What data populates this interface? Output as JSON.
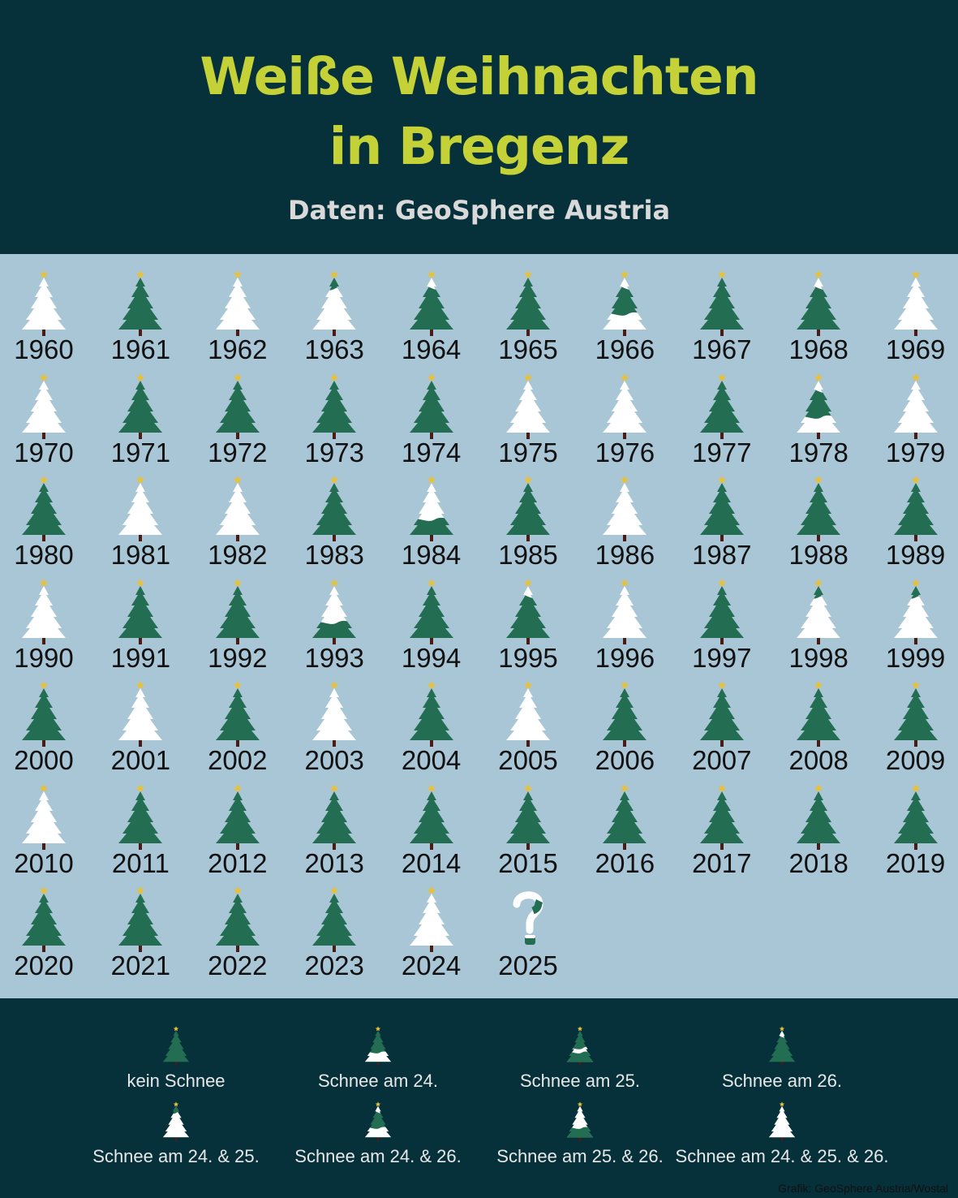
{
  "title_line1": "Weiße Weihnachten",
  "title_line2": "in Bregenz",
  "subtitle": "Daten: GeoSphere Austria",
  "credit": "Grafik: GeoSphere Austria/Wostal",
  "colors": {
    "header_bg": "#06303a",
    "title": "#c4d137",
    "background": "#a9c6d6",
    "tree_green": "#236e52",
    "snow": "#ffffff",
    "trunk": "#4a1c14",
    "star": "#e8c13a"
  },
  "chart_data": {
    "type": "table",
    "title": "Weiße Weihnachten in Bregenz",
    "subtitle": "Daten: GeoSphere Austria",
    "codes": {
      "none": "kein Schnee",
      "24": "Schnee am 24.",
      "25": "Schnee am 25.",
      "26": "Schnee am 26.",
      "24_25": "Schnee am 24. & 25.",
      "24_26": "Schnee am 24. & 26.",
      "25_26": "Schnee am 25. & 26.",
      "24_25_26": "Schnee am 24. & 25. & 26."
    },
    "years": [
      {
        "year": "1960",
        "snow": "24_25_26"
      },
      {
        "year": "1961",
        "snow": "none"
      },
      {
        "year": "1962",
        "snow": "24_25_26"
      },
      {
        "year": "1963",
        "snow": "24_25"
      },
      {
        "year": "1964",
        "snow": "26"
      },
      {
        "year": "1965",
        "snow": "none"
      },
      {
        "year": "1966",
        "snow": "24_26"
      },
      {
        "year": "1967",
        "snow": "none"
      },
      {
        "year": "1968",
        "snow": "26"
      },
      {
        "year": "1969",
        "snow": "24_25_26"
      },
      {
        "year": "1970",
        "snow": "24_25_26"
      },
      {
        "year": "1971",
        "snow": "none"
      },
      {
        "year": "1972",
        "snow": "none"
      },
      {
        "year": "1973",
        "snow": "none"
      },
      {
        "year": "1974",
        "snow": "none"
      },
      {
        "year": "1975",
        "snow": "24_25_26"
      },
      {
        "year": "1976",
        "snow": "24_25_26"
      },
      {
        "year": "1977",
        "snow": "none"
      },
      {
        "year": "1978",
        "snow": "24_26"
      },
      {
        "year": "1979",
        "snow": "24_25_26"
      },
      {
        "year": "1980",
        "snow": "none"
      },
      {
        "year": "1981",
        "snow": "24_25_26"
      },
      {
        "year": "1982",
        "snow": "24_25_26"
      },
      {
        "year": "1983",
        "snow": "none"
      },
      {
        "year": "1984",
        "snow": "25_26"
      },
      {
        "year": "1985",
        "snow": "none"
      },
      {
        "year": "1986",
        "snow": "24_25_26"
      },
      {
        "year": "1987",
        "snow": "none"
      },
      {
        "year": "1988",
        "snow": "none"
      },
      {
        "year": "1989",
        "snow": "none"
      },
      {
        "year": "1990",
        "snow": "24_25_26"
      },
      {
        "year": "1991",
        "snow": "none"
      },
      {
        "year": "1992",
        "snow": "none"
      },
      {
        "year": "1993",
        "snow": "25_26"
      },
      {
        "year": "1994",
        "snow": "none"
      },
      {
        "year": "1995",
        "snow": "26"
      },
      {
        "year": "1996",
        "snow": "24_25_26"
      },
      {
        "year": "1997",
        "snow": "none"
      },
      {
        "year": "1998",
        "snow": "24_25"
      },
      {
        "year": "1999",
        "snow": "24_25"
      },
      {
        "year": "2000",
        "snow": "none"
      },
      {
        "year": "2001",
        "snow": "24_25_26"
      },
      {
        "year": "2002",
        "snow": "none"
      },
      {
        "year": "2003",
        "snow": "24_25_26"
      },
      {
        "year": "2004",
        "snow": "none"
      },
      {
        "year": "2005",
        "snow": "24_25_26"
      },
      {
        "year": "2006",
        "snow": "none"
      },
      {
        "year": "2007",
        "snow": "none"
      },
      {
        "year": "2008",
        "snow": "none"
      },
      {
        "year": "2009",
        "snow": "none"
      },
      {
        "year": "2010",
        "snow": "24_25_26"
      },
      {
        "year": "2011",
        "snow": "none"
      },
      {
        "year": "2012",
        "snow": "none"
      },
      {
        "year": "2013",
        "snow": "none"
      },
      {
        "year": "2014",
        "snow": "none"
      },
      {
        "year": "2015",
        "snow": "none"
      },
      {
        "year": "2016",
        "snow": "none"
      },
      {
        "year": "2017",
        "snow": "none"
      },
      {
        "year": "2018",
        "snow": "none"
      },
      {
        "year": "2019",
        "snow": "none"
      },
      {
        "year": "2020",
        "snow": "none"
      },
      {
        "year": "2021",
        "snow": "none"
      },
      {
        "year": "2022",
        "snow": "none"
      },
      {
        "year": "2023",
        "snow": "none"
      },
      {
        "year": "2024",
        "snow": "24_25_26"
      },
      {
        "year": "2025",
        "snow": "unknown",
        "marker": "?"
      }
    ],
    "legend": [
      {
        "code": "none",
        "label": "kein Schnee"
      },
      {
        "code": "24",
        "label": "Schnee am 24."
      },
      {
        "code": "25",
        "label": "Schnee am 25."
      },
      {
        "code": "26",
        "label": "Schnee am 26."
      },
      {
        "code": "24_25",
        "label": "Schnee am 24. & 25."
      },
      {
        "code": "24_26",
        "label": "Schnee am 24. & 26."
      },
      {
        "code": "25_26",
        "label": "Schnee am 25. & 26."
      },
      {
        "code": "24_25_26",
        "label": "Schnee am 24. & 25. & 26."
      }
    ]
  }
}
